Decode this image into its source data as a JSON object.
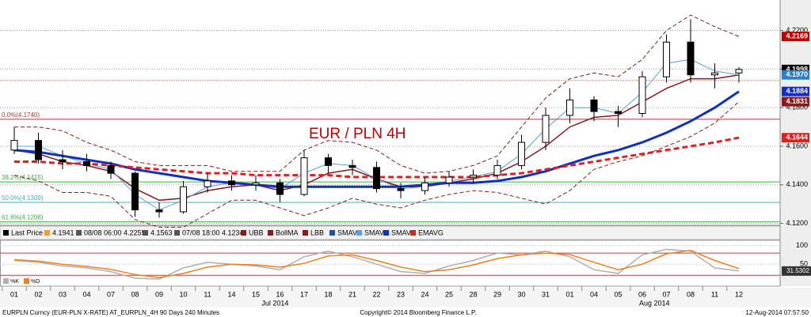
{
  "chart_data": {
    "type": "candlestick",
    "title": "EUR / PLN 4H",
    "categories": [
      "01",
      "02",
      "03",
      "04",
      "07",
      "08",
      "09",
      "10",
      "11",
      "14",
      "15",
      "16",
      "17",
      "18",
      "21",
      "22",
      "23",
      "24",
      "25",
      "28",
      "29",
      "30",
      "31",
      "01",
      "04",
      "05",
      "06",
      "07",
      "08",
      "11",
      "12"
    ],
    "months": [
      "Jul 2014",
      "Aug 2014"
    ],
    "ylim": [
      4.119,
      4.235
    ],
    "yticks": [
      {
        "value": 4.12,
        "label": "4.1200"
      },
      {
        "value": 4.14,
        "label": "4.1400"
      },
      {
        "value": 4.16,
        "label": "4.1600"
      },
      {
        "value": 4.18,
        "label": "4.1800"
      },
      {
        "value": 4.2,
        "label": "4.2000"
      },
      {
        "value": 4.22,
        "label": "4.2200"
      }
    ],
    "grid": true,
    "candles": {
      "open": [
        4.158,
        4.163,
        4.153,
        4.152,
        4.15,
        4.146,
        4.127,
        4.126,
        4.139,
        4.142,
        4.14,
        4.141,
        4.135,
        4.154,
        4.15,
        4.149,
        4.138,
        4.137,
        4.141,
        4.144,
        4.145,
        4.15,
        4.162,
        4.176,
        4.184,
        4.178,
        4.177,
        4.196,
        4.214,
        4.197,
        4.198
      ],
      "high": [
        4.17,
        4.167,
        4.158,
        4.156,
        4.152,
        4.147,
        4.131,
        4.142,
        4.146,
        4.145,
        4.145,
        4.143,
        4.158,
        4.156,
        4.153,
        4.152,
        4.141,
        4.144,
        4.147,
        4.148,
        4.153,
        4.166,
        4.18,
        4.19,
        4.186,
        4.181,
        4.199,
        4.218,
        4.2259,
        4.203,
        4.201
      ],
      "low": [
        4.156,
        4.151,
        4.148,
        4.147,
        4.143,
        4.1234,
        4.123,
        4.125,
        4.136,
        4.137,
        4.137,
        4.131,
        4.134,
        4.146,
        4.145,
        4.136,
        4.133,
        4.135,
        4.139,
        4.141,
        4.143,
        4.148,
        4.158,
        4.172,
        4.173,
        4.17,
        4.175,
        4.193,
        4.193,
        4.19,
        4.193
      ],
      "close": [
        4.163,
        4.153,
        4.152,
        4.15,
        4.146,
        4.127,
        4.126,
        4.139,
        4.142,
        4.14,
        4.141,
        4.135,
        4.154,
        4.15,
        4.149,
        4.138,
        4.137,
        4.141,
        4.144,
        4.145,
        4.15,
        4.162,
        4.176,
        4.184,
        4.178,
        4.177,
        4.196,
        4.214,
        4.197,
        4.198,
        4.1998
      ]
    },
    "series": [
      {
        "name": "UBB",
        "color": "#8b1a1a",
        "style": "dashed",
        "width": 1,
        "values": [
          4.17,
          4.17,
          4.168,
          4.162,
          4.158,
          4.152,
          4.15,
          4.15,
          4.15,
          4.147,
          4.147,
          4.147,
          4.158,
          4.163,
          4.162,
          4.158,
          4.15,
          4.146,
          4.147,
          4.15,
          4.155,
          4.17,
          4.185,
          4.195,
          4.198,
          4.196,
          4.205,
          4.22,
          4.228,
          4.222,
          4.2169
        ]
      },
      {
        "name": "BollMA",
        "color": "#8b1a1a",
        "style": "solid",
        "width": 1.5,
        "values": [
          4.158,
          4.156,
          4.152,
          4.15,
          4.147,
          4.138,
          4.132,
          4.133,
          4.137,
          4.139,
          4.14,
          4.137,
          4.14,
          4.146,
          4.148,
          4.143,
          4.139,
          4.139,
          4.141,
          4.143,
          4.146,
          4.152,
          4.16,
          4.17,
          4.175,
          4.176,
          4.183,
          4.19,
          4.195,
          4.195,
          4.197
        ]
      },
      {
        "name": "LBB",
        "color": "#8b1a1a",
        "style": "dashed",
        "width": 1,
        "values": [
          4.145,
          4.142,
          4.136,
          4.136,
          4.134,
          4.122,
          4.118,
          4.118,
          4.125,
          4.132,
          4.132,
          4.128,
          4.124,
          4.128,
          4.133,
          4.13,
          4.128,
          4.132,
          4.135,
          4.137,
          4.136,
          4.133,
          4.13,
          4.137,
          4.148,
          4.152,
          4.155,
          4.16,
          4.165,
          4.172,
          4.1831
        ]
      },
      {
        "name": "SMAVG",
        "color": "#1f4fa0",
        "style": "solid",
        "width": 1,
        "values": [
          4.158,
          4.157,
          4.155,
          4.153,
          4.151,
          4.148,
          4.146,
          4.144,
          4.142,
          4.141,
          4.14,
          4.139,
          4.139,
          4.139,
          4.139,
          4.139,
          4.139,
          4.14,
          4.141,
          4.141,
          4.142,
          4.144,
          4.147,
          4.151,
          4.155,
          4.158,
          4.162,
          4.167,
          4.173,
          4.18,
          4.1884
        ]
      },
      {
        "name": "SMAVG",
        "color": "#5aa0e0",
        "style": "solid",
        "width": 1,
        "values": [
          4.16,
          4.16,
          4.155,
          4.151,
          4.148,
          4.135,
          4.127,
          4.132,
          4.139,
          4.141,
          4.14,
          4.138,
          4.146,
          4.151,
          4.15,
          4.143,
          4.138,
          4.139,
          4.142,
          4.144,
          4.147,
          4.156,
          4.169,
          4.18,
          4.18,
          4.177,
          4.188,
          4.203,
          4.205,
          4.199,
          4.197
        ]
      },
      {
        "name": "SMAVG",
        "color": "#1030c0",
        "style": "solid",
        "width": 3,
        "values": [
          4.158,
          4.157,
          4.155,
          4.153,
          4.151,
          4.148,
          4.146,
          4.144,
          4.142,
          4.141,
          4.14,
          4.139,
          4.139,
          4.139,
          4.139,
          4.139,
          4.139,
          4.14,
          4.141,
          4.141,
          4.142,
          4.144,
          4.147,
          4.151,
          4.155,
          4.158,
          4.162,
          4.167,
          4.173,
          4.18,
          4.1884
        ]
      },
      {
        "name": "EMAVG",
        "color": "#e02020",
        "style": "dashed",
        "width": 3,
        "values": [
          4.152,
          4.152,
          4.151,
          4.151,
          4.15,
          4.149,
          4.148,
          4.147,
          4.146,
          4.146,
          4.145,
          4.145,
          4.145,
          4.145,
          4.144,
          4.144,
          4.144,
          4.144,
          4.144,
          4.144,
          4.145,
          4.146,
          4.148,
          4.15,
          4.152,
          4.154,
          4.156,
          4.158,
          4.16,
          4.162,
          4.1644
        ]
      }
    ],
    "fib_levels": [
      {
        "value": 4.174,
        "label": "0.0%(4.1740)",
        "color": "#c03030"
      },
      {
        "value": 4.1415,
        "label": "38.2%(4.1415)",
        "color": "#40b040"
      },
      {
        "value": 4.1309,
        "label": "50.0%(4.1309)",
        "color": "#40b0c0"
      },
      {
        "value": 4.1208,
        "label": "61.8%(4.1208)",
        "color": "#40b040"
      }
    ],
    "axis_labels": [
      {
        "value": 4.2169,
        "label": "4.2169",
        "color": "#c00000"
      },
      {
        "value": 4.1998,
        "label": "4.1998",
        "color": "#000000"
      },
      {
        "value": 4.197,
        "label": "4.1970",
        "color": "#2a7fd0"
      },
      {
        "value": 4.1884,
        "label": "4.1884",
        "color": "#1030c0"
      },
      {
        "value": 4.1831,
        "label": "4.1831",
        "color": "#8b1a1a"
      },
      {
        "value": 4.1644,
        "label": "4.1644",
        "color": "#e02020"
      }
    ],
    "legend": {
      "last_price": "Last Price",
      "open": {
        "value": 4.1941,
        "label": "4.1941",
        "color": "#f0a030"
      },
      "high": "08/08 06:00 4.2259",
      "average": "4.1563",
      "low": "07/08 18:00 4.1234"
    },
    "stochastic": {
      "type": "line",
      "series": [
        {
          "name": "%K",
          "color": "#b0b0b0",
          "values": [
            60,
            55,
            45,
            40,
            30,
            12,
            10,
            40,
            55,
            50,
            45,
            35,
            70,
            85,
            70,
            50,
            30,
            25,
            45,
            60,
            80,
            75,
            85,
            70,
            35,
            25,
            75,
            90,
            85,
            40,
            31.5302
          ]
        },
        {
          "name": "%D",
          "color": "#f08020",
          "values": [
            62,
            58,
            50,
            44,
            36,
            22,
            14,
            25,
            42,
            50,
            48,
            42,
            52,
            72,
            75,
            60,
            42,
            30,
            35,
            48,
            65,
            75,
            80,
            76,
            55,
            35,
            50,
            78,
            87,
            60,
            38
          ]
        }
      ],
      "ylim": [
        -5,
        110
      ],
      "yticks": [
        50,
        100
      ],
      "levels": [
        80,
        20
      ],
      "value_box": {
        "value": 31.5302,
        "label": "31.5302"
      }
    }
  },
  "footer": {
    "left": "EURPLN Curncy (EUR-PLN X-RATE) AT_EURPLN_4H 90 Days 240 Minutes",
    "center": "Copyright© 2014 Bloomberg Finance L.P.",
    "right": "12-Aug-2014 07:57:50"
  }
}
